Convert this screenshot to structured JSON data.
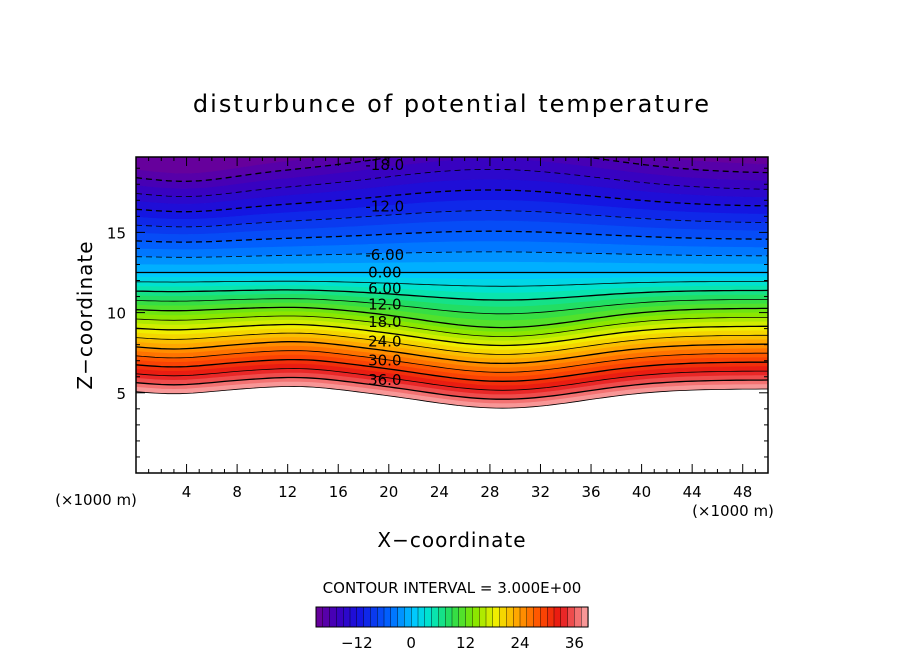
{
  "chart_data": {
    "type": "heatmap",
    "title": "disturbunce of potential temperature",
    "xlabel": "X−coordinate",
    "ylabel": "Z−coordinate",
    "x_unit_left": "(×1000 m)",
    "x_unit_right": "(×1000 m)",
    "xlim": [
      0,
      50
    ],
    "ylim": [
      0,
      19.7
    ],
    "x_ticks": [
      4,
      8,
      12,
      16,
      20,
      24,
      28,
      32,
      36,
      40,
      44,
      48
    ],
    "y_ticks": [
      5,
      10,
      15
    ],
    "x_tick_labels": [
      "4",
      "8",
      "12",
      "16",
      "20",
      "24",
      "28",
      "32",
      "36",
      "40",
      "44",
      "48"
    ],
    "y_tick_labels": [
      "5",
      "10",
      "15"
    ],
    "grid": false,
    "colormap": "rainbow (purple → blue → cyan → green → yellow → orange → red → pink)",
    "value_range": [
      -21,
      39
    ],
    "contour_interval_text": "CONTOUR INTERVAL = 3.000E+00",
    "negative_contours": "dashed",
    "contour_labels": [
      {
        "text": "-18.0",
        "x": 20,
        "z": 19.2,
        "value": -18
      },
      {
        "text": "-12.0",
        "x": 20,
        "z": 16.6,
        "value": -12
      },
      {
        "text": "-6.00",
        "x": 20,
        "z": 13.6,
        "value": -6
      },
      {
        "text": "0.00",
        "x": 20,
        "z": 12.5,
        "value": 0
      },
      {
        "text": "6.00",
        "x": 20,
        "z": 11.5,
        "value": 6
      },
      {
        "text": "12.0",
        "x": 20,
        "z": 10.5,
        "value": 12
      },
      {
        "text": "18.0",
        "x": 20,
        "z": 9.4,
        "value": 18
      },
      {
        "text": "24.0",
        "x": 20,
        "z": 8.2,
        "value": 24
      },
      {
        "text": "30.0",
        "x": 20,
        "z": 7.0,
        "value": 30
      },
      {
        "text": "36.0",
        "x": 20,
        "z": 5.8,
        "value": 36
      }
    ],
    "colorbar": {
      "min": -21,
      "max": 39,
      "ticks": [
        -12,
        0,
        12,
        24,
        36
      ],
      "tick_labels": [
        "−12",
        "0",
        "12",
        "24",
        "36"
      ]
    }
  },
  "colors": {
    "background": "#ffffff",
    "axis": "#000000",
    "contour_line": "#000000"
  }
}
